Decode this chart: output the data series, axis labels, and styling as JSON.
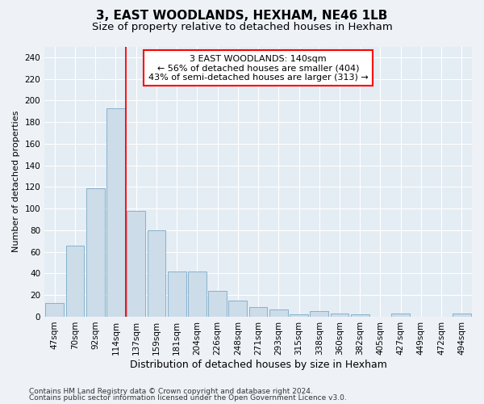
{
  "title1": "3, EAST WOODLANDS, HEXHAM, NE46 1LB",
  "title2": "Size of property relative to detached houses in Hexham",
  "xlabel": "Distribution of detached houses by size in Hexham",
  "ylabel": "Number of detached properties",
  "bar_labels": [
    "47sqm",
    "70sqm",
    "92sqm",
    "114sqm",
    "137sqm",
    "159sqm",
    "181sqm",
    "204sqm",
    "226sqm",
    "248sqm",
    "271sqm",
    "293sqm",
    "315sqm",
    "338sqm",
    "360sqm",
    "382sqm",
    "405sqm",
    "427sqm",
    "449sqm",
    "472sqm",
    "494sqm"
  ],
  "bar_values": [
    13,
    66,
    119,
    193,
    98,
    80,
    42,
    42,
    24,
    15,
    9,
    7,
    2,
    5,
    3,
    2,
    0,
    3,
    0,
    0,
    3
  ],
  "bar_color": "#ccdce8",
  "bar_edge_color": "#7aaac8",
  "red_line_x": 4,
  "annotation_text": "3 EAST WOODLANDS: 140sqm\n← 56% of detached houses are smaller (404)\n43% of semi-detached houses are larger (313) →",
  "annotation_box_color": "white",
  "annotation_box_edge": "red",
  "ylim": [
    0,
    250
  ],
  "yticks": [
    0,
    20,
    40,
    60,
    80,
    100,
    120,
    140,
    160,
    180,
    200,
    220,
    240
  ],
  "footer1": "Contains HM Land Registry data © Crown copyright and database right 2024.",
  "footer2": "Contains public sector information licensed under the Open Government Licence v3.0.",
  "bg_color": "#eef2f7",
  "plot_bg_color": "#e4ecf4",
  "grid_color": "white",
  "title1_fontsize": 11,
  "title2_fontsize": 9.5,
  "xlabel_fontsize": 9,
  "ylabel_fontsize": 8,
  "tick_fontsize": 7.5,
  "annotation_fontsize": 8,
  "footer_fontsize": 6.5
}
